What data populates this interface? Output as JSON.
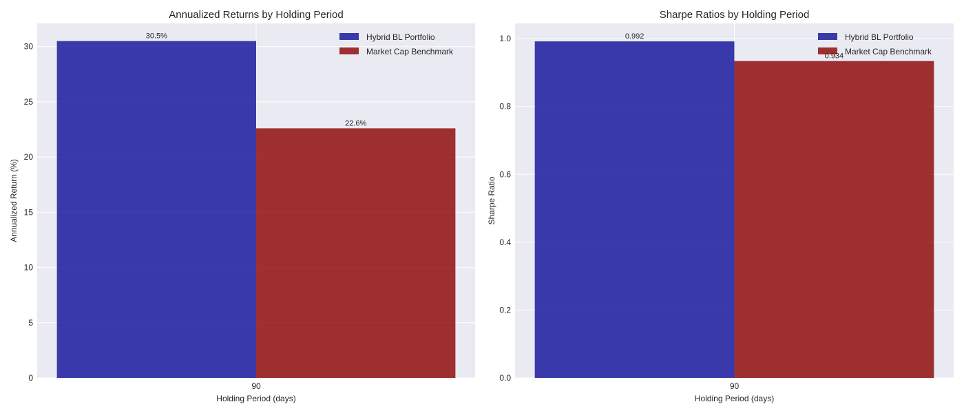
{
  "figure": {
    "background": "#ffffff",
    "plot_background": "#eaeaf2",
    "grid_color": "#ffffff"
  },
  "chart_data": [
    {
      "type": "bar",
      "title": "Annualized Returns by Holding Period",
      "xlabel": "Holding Period (days)",
      "ylabel": "Annualized Return (%)",
      "categories": [
        "90"
      ],
      "series": [
        {
          "name": "Hybrid BL Portfolio",
          "values": [
            30.5
          ],
          "labels": [
            "30.5%"
          ],
          "color": "#0d0d99"
        },
        {
          "name": "Market Cap Benchmark",
          "values": [
            22.6
          ],
          "labels": [
            "22.6%"
          ],
          "color": "#8b0000"
        }
      ],
      "ylim": [
        0,
        32.1
      ],
      "yticks": [
        0,
        5,
        10,
        15,
        20,
        25,
        30
      ],
      "ytick_labels": [
        "0",
        "5",
        "10",
        "15",
        "20",
        "25",
        "30"
      ],
      "grid": true,
      "legend": "upper-right"
    },
    {
      "type": "bar",
      "title": "Sharpe Ratios by Holding Period",
      "xlabel": "Holding Period (days)",
      "ylabel": "Sharpe Ratio",
      "categories": [
        "90"
      ],
      "series": [
        {
          "name": "Hybrid BL Portfolio",
          "values": [
            0.992
          ],
          "labels": [
            "0.992"
          ],
          "color": "#0d0d99"
        },
        {
          "name": "Market Cap Benchmark",
          "values": [
            0.934
          ],
          "labels": [
            "0.934"
          ],
          "color": "#8b0000"
        }
      ],
      "ylim": [
        0,
        1.045
      ],
      "yticks": [
        0,
        0.2,
        0.4,
        0.6,
        0.8,
        1.0
      ],
      "ytick_labels": [
        "0.0",
        "0.2",
        "0.4",
        "0.6",
        "0.8",
        "1.0"
      ],
      "grid": true,
      "legend": "upper-right"
    }
  ]
}
